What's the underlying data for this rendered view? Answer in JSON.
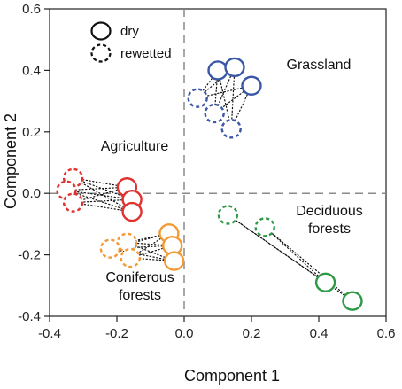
{
  "chart_data": {
    "type": "scatter",
    "xlabel": "Component 1",
    "ylabel": "Component 2",
    "xlim": [
      -0.4,
      0.6
    ],
    "ylim": [
      -0.4,
      0.6
    ],
    "xticks": [
      "-0.4",
      "-0.2",
      "0.0",
      "0.2",
      "0.4",
      "0.6"
    ],
    "yticks": [
      "-0.4",
      "-0.2",
      "0.0",
      "0.2",
      "0.4",
      "0.6"
    ],
    "reference_lines": {
      "x": 0,
      "y": 0,
      "style": "dashed"
    },
    "legend": {
      "position": "top-left",
      "entries": [
        {
          "label": "dry",
          "style": "solid"
        },
        {
          "label": "rewetted",
          "style": "dashed"
        }
      ]
    },
    "groups": [
      {
        "label": [
          "Grassland"
        ],
        "color": "#3a58a6",
        "dry": [
          [
            0.1,
            0.4
          ],
          [
            0.15,
            0.41
          ],
          [
            0.2,
            0.35
          ]
        ],
        "rewetted": [
          [
            0.04,
            0.31
          ],
          [
            0.09,
            0.26
          ],
          [
            0.14,
            0.21
          ]
        ]
      },
      {
        "label": [
          "Agriculture"
        ],
        "color": "#e0312f",
        "dry": [
          [
            -0.17,
            0.02
          ],
          [
            -0.155,
            -0.02
          ],
          [
            -0.155,
            -0.06
          ]
        ],
        "rewetted": [
          [
            -0.33,
            0.05
          ],
          [
            -0.35,
            0.01
          ],
          [
            -0.33,
            -0.03
          ]
        ]
      },
      {
        "label": [
          "Coniferous",
          "forests"
        ],
        "color": "#f39a35",
        "dry": [
          [
            -0.045,
            -0.13
          ],
          [
            -0.035,
            -0.17
          ],
          [
            -0.03,
            -0.22
          ]
        ],
        "rewetted": [
          [
            -0.17,
            -0.16
          ],
          [
            -0.22,
            -0.18
          ],
          [
            -0.16,
            -0.21
          ]
        ]
      },
      {
        "label": [
          "Deciduous",
          "forests"
        ],
        "color": "#2c9a45",
        "dry": [
          [
            0.42,
            -0.29
          ],
          [
            0.5,
            -0.35
          ]
        ],
        "rewetted": [
          [
            0.13,
            -0.07
          ],
          [
            0.24,
            -0.11
          ]
        ]
      }
    ],
    "connections_style": "dotted"
  }
}
